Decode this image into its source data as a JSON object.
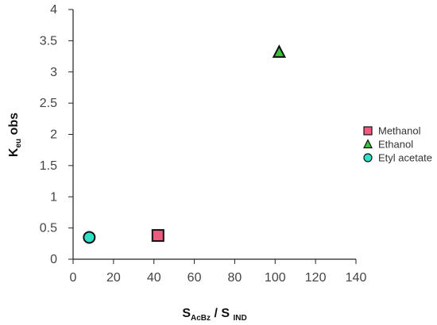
{
  "chart_data": {
    "type": "scatter",
    "title": "",
    "xlabel": {
      "main": "S",
      "sub1": "AcBz",
      "mid": " / S ",
      "sub2": "IND"
    },
    "ylabel": {
      "main": "K",
      "sub": "eu",
      "rest": " obs"
    },
    "xlim": [
      0,
      140
    ],
    "ylim": [
      0,
      4
    ],
    "xticks": [
      0,
      20,
      40,
      60,
      80,
      100,
      120,
      140
    ],
    "yticks": [
      0,
      0.5,
      1,
      1.5,
      2,
      2.5,
      3,
      3.5,
      4
    ],
    "ytick_labels": [
      "0",
      "0.5",
      "1",
      "1.5",
      "2",
      "2.5",
      "3",
      "3.5",
      "4"
    ],
    "grid": false,
    "legend_position": "right",
    "series": [
      {
        "name": "Methanol",
        "marker": "square",
        "color": "#f05a7e",
        "x": [
          42
        ],
        "y": [
          0.38
        ]
      },
      {
        "name": "Ethanol",
        "marker": "triangle",
        "color": "#3cc23c",
        "x": [
          102
        ],
        "y": [
          3.32
        ]
      },
      {
        "name": "Etyl acetate",
        "marker": "circle",
        "color": "#2ee0c8",
        "x": [
          8
        ],
        "y": [
          0.35
        ]
      }
    ]
  }
}
